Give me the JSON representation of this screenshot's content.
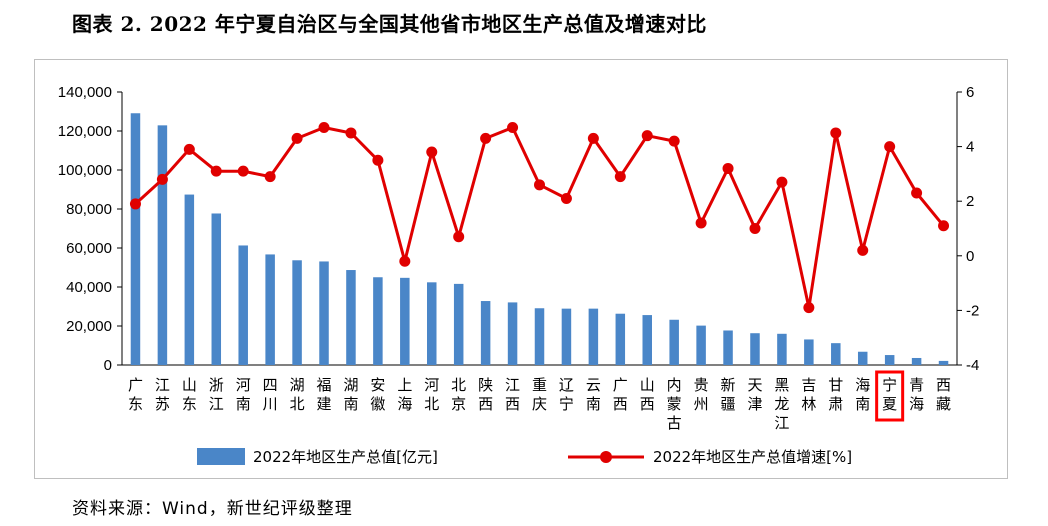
{
  "title": "图表 2. 2022 年宁夏自治区与全国其他省市地区生产总值及增速对比",
  "source": "资料来源：Wind，新世纪评级整理",
  "chart_data": {
    "type": "bar+line",
    "categories": [
      "广东",
      "江苏",
      "山东",
      "浙江",
      "河南",
      "四川",
      "湖北",
      "福建",
      "湖南",
      "安徽",
      "上海",
      "河北",
      "北京",
      "陕西",
      "江西",
      "重庆",
      "辽宁",
      "云南",
      "广西",
      "山西",
      "内蒙古",
      "贵州",
      "新疆",
      "天津",
      "黑龙江",
      "吉林",
      "甘肃",
      "海南",
      "宁夏",
      "青海",
      "西藏"
    ],
    "highlight_category": "宁夏",
    "series": [
      {
        "name": "2022年地区生产总值[亿元]",
        "type": "bar",
        "axis": "left",
        "color": "#4a86c8",
        "values": [
          129100,
          122900,
          87400,
          77700,
          61300,
          56700,
          53700,
          53100,
          48700,
          45000,
          44700,
          42400,
          41600,
          32800,
          32100,
          29100,
          28900,
          28900,
          26300,
          25600,
          23200,
          20200,
          17700,
          16300,
          16000,
          13100,
          11200,
          6800,
          5100,
          3600,
          2100
        ]
      },
      {
        "name": "2022年地区生产总值增速[%]",
        "type": "line",
        "axis": "right",
        "color": "#e00000",
        "values": [
          1.9,
          2.8,
          3.9,
          3.1,
          3.1,
          2.9,
          4.3,
          4.7,
          4.5,
          3.5,
          -0.2,
          3.8,
          0.7,
          4.3,
          4.7,
          2.6,
          2.1,
          4.3,
          2.9,
          4.4,
          4.2,
          1.2,
          3.2,
          1.0,
          2.7,
          -1.9,
          4.5,
          0.2,
          4.0,
          2.3,
          1.1
        ]
      }
    ],
    "y_left": {
      "min": 0,
      "max": 140000,
      "ticks": [
        "0",
        "20,000",
        "40,000",
        "60,000",
        "80,000",
        "100,000",
        "120,000",
        "140,000"
      ]
    },
    "y_right": {
      "min": -4,
      "max": 6,
      "ticks": [
        "-4",
        "-2",
        "0",
        "2",
        "4",
        "6"
      ]
    },
    "grid": false,
    "legend_position": "bottom"
  }
}
